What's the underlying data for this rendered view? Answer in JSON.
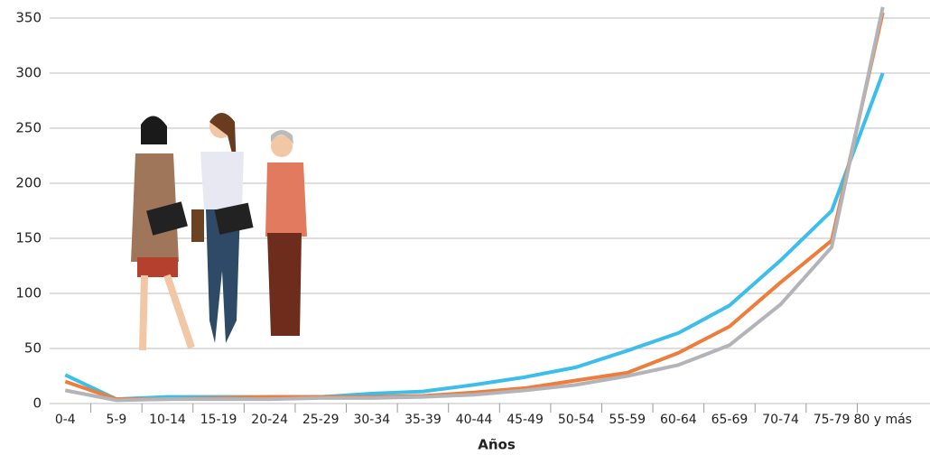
{
  "chart_data": {
    "type": "line",
    "x_label": "Años",
    "categories": [
      "0-4",
      "5-9",
      "10-14",
      "15-19",
      "20-24",
      "25-29",
      "30-34",
      "35-39",
      "40-44",
      "45-49",
      "50-54",
      "55-59",
      "60-64",
      "65-69",
      "70-74",
      "75-79",
      "80 y más"
    ],
    "series": [
      {
        "color": "#3bbfea",
        "values": [
          26,
          4,
          6,
          6,
          6,
          6,
          9,
          11,
          17,
          24,
          33,
          48,
          64,
          89,
          130,
          175,
          300
        ]
      },
      {
        "color": "#ee7d3b",
        "values": [
          20,
          4,
          4,
          5,
          6,
          6,
          6,
          7,
          10,
          14,
          21,
          28,
          46,
          70,
          110,
          148,
          355
        ]
      },
      {
        "color": "#b3b3ba",
        "values": [
          12,
          3,
          4,
          4,
          4,
          5,
          5,
          6,
          8,
          12,
          17,
          25,
          35,
          53,
          90,
          142,
          360
        ]
      }
    ],
    "ylim": [
      0,
      350
    ],
    "yticks": [
      0,
      50,
      100,
      150,
      200,
      250,
      300,
      350
    ],
    "grid": true
  }
}
